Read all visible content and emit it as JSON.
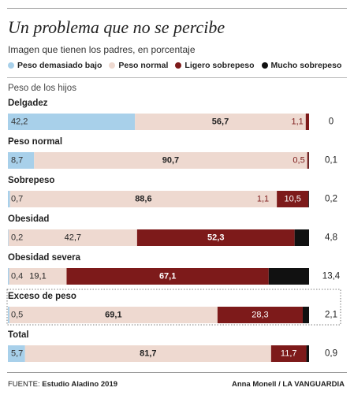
{
  "header": {
    "title": "Un problema que no se percibe",
    "subtitle": "Imagen que tienen los padres, en porcentaje"
  },
  "legend": [
    {
      "label": "Peso demasiado bajo",
      "color": "#a8d0ea"
    },
    {
      "label": "Peso normal",
      "color": "#eed9d0"
    },
    {
      "label": "Ligero sobrepeso",
      "color": "#7d1a1a"
    },
    {
      "label": "Mucho sobrepeso",
      "color": "#111111"
    }
  ],
  "footer": {
    "source_label": "FUENTE:",
    "source_value": "Estudio Aladino 2019",
    "author": "Anna Monell / LA VANGUARDIA"
  },
  "chart_data": {
    "type": "bar",
    "orientation": "horizontal",
    "stacked": true,
    "title": "Un problema que no se percibe",
    "subtitle": "Imagen que tienen los padres, en porcentaje",
    "category_axis_label": "Peso de los hijos",
    "series_names": [
      "Peso demasiado bajo",
      "Peso normal",
      "Ligero sobrepeso",
      "Mucho sobrepeso"
    ],
    "colors": [
      "#a8d0ea",
      "#eed9d0",
      "#7d1a1a",
      "#111111"
    ],
    "categories": [
      {
        "name": "Delgadez",
        "values": [
          42.2,
          56.7,
          1.1,
          0
        ],
        "labels": [
          "42,2",
          "56,7",
          "1,1",
          "0"
        ],
        "highlight": false
      },
      {
        "name": "Peso  normal",
        "values": [
          8.7,
          90.7,
          0.5,
          0.1
        ],
        "labels": [
          "8,7",
          "90,7",
          "0,5",
          "0,1"
        ],
        "highlight": false
      },
      {
        "name": "Sobrepeso",
        "values": [
          0.7,
          88.6,
          10.5,
          0.2
        ],
        "labels": [
          "0,7",
          "88,6",
          "10,5",
          "0,2"
        ],
        "extra_label": "1,1",
        "highlight": false
      },
      {
        "name": "Obesidad",
        "values": [
          0.2,
          42.7,
          52.3,
          4.8
        ],
        "labels": [
          "0,2",
          "42,7",
          "52,3",
          "4,8"
        ],
        "highlight": false
      },
      {
        "name": "Obesidad severa",
        "values": [
          0.4,
          19.1,
          67.1,
          13.4
        ],
        "labels": [
          "0,4",
          "19,1",
          "67,1",
          "13,4"
        ],
        "highlight": false
      },
      {
        "name": "Exceso de peso",
        "values": [
          0.5,
          69.1,
          28.3,
          2.1
        ],
        "labels": [
          "0,5",
          "69,1",
          "28,3",
          "2,1"
        ],
        "highlight": true
      },
      {
        "name": "Total",
        "values": [
          5.7,
          81.7,
          11.7,
          0.9
        ],
        "labels": [
          "5,7",
          "81,7",
          "11,7",
          "0,9"
        ],
        "highlight": false
      }
    ]
  }
}
